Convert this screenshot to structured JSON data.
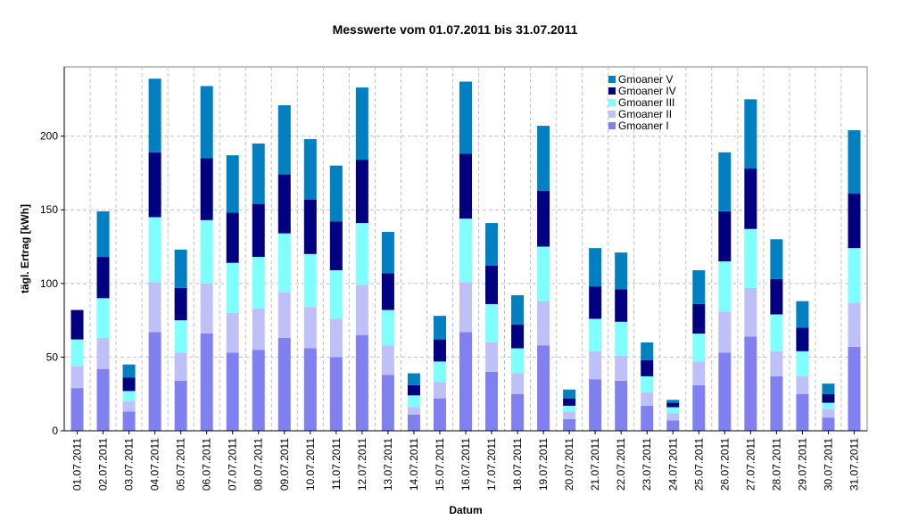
{
  "chart_data": {
    "type": "stacked_bar",
    "title": "Messwerte vom 01.07.2011 bis 31.07.2011",
    "y_label": "tägl. Ertrag [kWh]",
    "x_label": "Datum",
    "categories": [
      "01.07.2011",
      "02.07.2011",
      "03.07.2011",
      "04.07.2011",
      "05.07.2011",
      "06.07.2011",
      "07.07.2011",
      "08.07.2011",
      "09.07.2011",
      "10.07.2011",
      "11.07.2011",
      "12.07.2011",
      "13.07.2011",
      "14.07.2011",
      "15.07.2011",
      "16.07.2011",
      "17.07.2011",
      "18.07.2011",
      "19.07.2011",
      "20.07.2011",
      "21.07.2011",
      "22.07.2011",
      "23.07.2011",
      "24.07.2011",
      "25.07.2011",
      "26.07.2011",
      "27.07.2011",
      "28.07.2011",
      "29.07.2011",
      "30.07.2011",
      "31.07.2011"
    ],
    "series": [
      {
        "name": "Gmoaner I",
        "color": "#8080f0",
        "values": [
          29,
          42,
          13,
          67,
          34,
          66,
          53,
          55,
          63,
          56,
          50,
          65,
          38,
          11,
          22,
          67,
          40,
          25,
          58,
          8,
          35,
          34,
          17,
          7,
          31,
          53,
          64,
          37,
          25,
          9,
          57
        ]
      },
      {
        "name": "Gmoaner II",
        "color": "#c0c0f8",
        "values": [
          15,
          21,
          7,
          34,
          19,
          34,
          27,
          28,
          31,
          28,
          26,
          34,
          20,
          5,
          11,
          34,
          20,
          14,
          30,
          5,
          19,
          17,
          9,
          5,
          16,
          28,
          33,
          17,
          12,
          6,
          30
        ]
      },
      {
        "name": "Gmoaner III",
        "color": "#80ffff",
        "values": [
          18,
          27,
          7,
          44,
          22,
          43,
          34,
          35,
          40,
          36,
          33,
          42,
          24,
          8,
          14,
          43,
          26,
          17,
          37,
          4,
          22,
          23,
          11,
          4,
          19,
          34,
          40,
          25,
          17,
          4,
          37
        ]
      },
      {
        "name": "Gmoaner IV",
        "color": "#000080",
        "values": [
          20,
          28,
          9,
          44,
          22,
          42,
          34,
          36,
          40,
          37,
          33,
          43,
          25,
          7,
          15,
          44,
          26,
          16,
          38,
          5,
          22,
          22,
          11,
          3,
          20,
          34,
          41,
          24,
          16,
          6,
          37
        ]
      },
      {
        "name": "Gmoaner V",
        "color": "#0080c0",
        "values": [
          0,
          31,
          9,
          50,
          26,
          49,
          39,
          41,
          47,
          41,
          38,
          49,
          28,
          8,
          16,
          49,
          29,
          20,
          44,
          6,
          26,
          25,
          12,
          2,
          23,
          40,
          47,
          27,
          18,
          7,
          43
        ]
      }
    ],
    "ylim": [
      0,
      247
    ],
    "yticks": [
      0,
      50,
      100,
      150,
      200
    ],
    "grid": true,
    "legend": "upper right"
  }
}
